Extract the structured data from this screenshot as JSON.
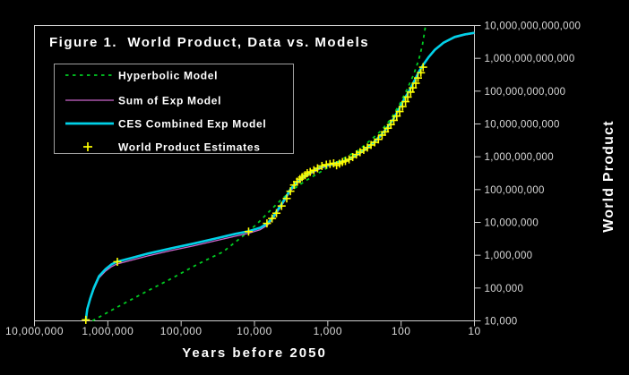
{
  "chart_data": {
    "type": "line",
    "title": "Figure 1.  World Product, Data vs. Models",
    "xlabel": "Years before 2050",
    "ylabel": "World Product",
    "background_color": "#000000",
    "frame_color": "#cfcfcf",
    "tick_label_color": "#d9d9d9",
    "x_axis": {
      "scale": "log10",
      "reversed": true,
      "min_exponent": 1,
      "max_exponent": 7,
      "tick_exponents": [
        7,
        6,
        5,
        4,
        3,
        2,
        1
      ],
      "tick_labels": [
        "10,000,000",
        "1,000,000",
        "100,000",
        "10,000",
        "1,000",
        "100",
        "10"
      ]
    },
    "y_axis": {
      "scale": "log10",
      "side": "right",
      "min_exponent": 4,
      "max_exponent": 13,
      "tick_exponents": [
        4,
        5,
        6,
        7,
        8,
        9,
        10,
        11,
        12,
        13
      ],
      "tick_labels": [
        "10,000",
        "100,000",
        "1,000,000",
        "10,000,000",
        "100,000,000",
        "1,000,000,000",
        "10,000,000,000",
        "100,000,000,000",
        "1,000,000,000,000",
        "10,000,000,000,000"
      ]
    },
    "legend": [
      {
        "label": "Hyperbolic Model",
        "sample": "dashed-line",
        "color": "#00cc22"
      },
      {
        "label": "Sum of Exp Model",
        "sample": "thin-line",
        "color": "#cc66cc"
      },
      {
        "label": "CES Combined Exp Model",
        "sample": "thick-line",
        "color": "#00d2e8"
      },
      {
        "label": "World Product Estimates",
        "sample": "plus-marker",
        "color": "#ffff00"
      }
    ],
    "series": [
      {
        "name": "Hyperbolic Model",
        "style": "dashed",
        "color": "#00cc22",
        "width": 1.8,
        "points_log10": [
          [
            6.21,
            4.0
          ],
          [
            5.88,
            4.41
          ],
          [
            5.51,
            4.85
          ],
          [
            5.14,
            5.28
          ],
          [
            4.78,
            5.72
          ],
          [
            4.43,
            6.1
          ],
          [
            4.17,
            6.56
          ],
          [
            3.98,
            6.92
          ],
          [
            3.8,
            7.33
          ],
          [
            3.65,
            7.66
          ],
          [
            3.49,
            7.98
          ],
          [
            3.31,
            8.26
          ],
          [
            3.13,
            8.5
          ],
          [
            2.94,
            8.75
          ],
          [
            2.76,
            8.98
          ],
          [
            2.58,
            9.2
          ],
          [
            2.42,
            9.5
          ],
          [
            2.27,
            9.8
          ],
          [
            2.14,
            10.15
          ],
          [
            2.02,
            10.6
          ],
          [
            1.92,
            11.05
          ],
          [
            1.83,
            11.5
          ],
          [
            1.76,
            11.95
          ],
          [
            1.71,
            12.4
          ],
          [
            1.67,
            12.95
          ]
        ]
      },
      {
        "name": "Sum of Exp Model",
        "style": "solid",
        "color": "#cc66cc",
        "width": 1.3,
        "points_log10": [
          [
            6.3,
            4.03
          ],
          [
            6.28,
            4.33
          ],
          [
            6.24,
            4.64
          ],
          [
            6.19,
            4.96
          ],
          [
            6.12,
            5.31
          ],
          [
            6.03,
            5.52
          ],
          [
            5.95,
            5.65
          ],
          [
            5.88,
            5.73
          ],
          [
            5.69,
            5.84
          ],
          [
            5.45,
            5.98
          ],
          [
            5.14,
            6.14
          ],
          [
            4.84,
            6.28
          ],
          [
            4.53,
            6.44
          ],
          [
            4.26,
            6.58
          ],
          [
            4.08,
            6.67
          ],
          [
            3.92,
            6.78
          ],
          [
            3.82,
            6.92
          ],
          [
            3.74,
            7.14
          ],
          [
            3.65,
            7.44
          ],
          [
            3.58,
            7.69
          ],
          [
            3.51,
            7.96
          ],
          [
            3.43,
            8.15
          ],
          [
            3.33,
            8.35
          ],
          [
            3.21,
            8.51
          ],
          [
            3.09,
            8.65
          ],
          [
            2.97,
            8.74
          ],
          [
            2.85,
            8.8
          ],
          [
            2.72,
            8.88
          ],
          [
            2.6,
            9.04
          ],
          [
            2.48,
            9.21
          ],
          [
            2.38,
            9.4
          ],
          [
            2.28,
            9.62
          ],
          [
            2.2,
            9.84
          ],
          [
            2.11,
            10.12
          ],
          [
            2.04,
            10.39
          ],
          [
            1.97,
            10.69
          ],
          [
            1.89,
            10.99
          ],
          [
            1.82,
            11.29
          ],
          [
            1.76,
            11.56
          ],
          [
            1.7,
            11.78
          ],
          [
            1.62,
            12.03
          ],
          [
            1.54,
            12.24
          ],
          [
            1.42,
            12.46
          ],
          [
            1.27,
            12.63
          ],
          [
            1.13,
            12.71
          ],
          [
            1.0,
            12.76
          ]
        ]
      },
      {
        "name": "CES Combined Exp Model",
        "style": "solid",
        "color": "#00d2e8",
        "width": 2.6,
        "points_log10": [
          [
            6.3,
            4.03
          ],
          [
            6.28,
            4.36
          ],
          [
            6.24,
            4.68
          ],
          [
            6.19,
            5.01
          ],
          [
            6.12,
            5.36
          ],
          [
            6.03,
            5.58
          ],
          [
            5.95,
            5.72
          ],
          [
            5.88,
            5.8
          ],
          [
            5.69,
            5.91
          ],
          [
            5.45,
            6.05
          ],
          [
            5.14,
            6.21
          ],
          [
            4.84,
            6.35
          ],
          [
            4.53,
            6.51
          ],
          [
            4.26,
            6.65
          ],
          [
            4.08,
            6.73
          ],
          [
            3.92,
            6.84
          ],
          [
            3.82,
            6.97
          ],
          [
            3.74,
            7.19
          ],
          [
            3.65,
            7.49
          ],
          [
            3.58,
            7.74
          ],
          [
            3.51,
            8.01
          ],
          [
            3.43,
            8.2
          ],
          [
            3.33,
            8.39
          ],
          [
            3.21,
            8.55
          ],
          [
            3.09,
            8.69
          ],
          [
            2.97,
            8.77
          ],
          [
            2.85,
            8.83
          ],
          [
            2.72,
            8.91
          ],
          [
            2.6,
            9.07
          ],
          [
            2.48,
            9.24
          ],
          [
            2.38,
            9.43
          ],
          [
            2.28,
            9.65
          ],
          [
            2.2,
            9.86
          ],
          [
            2.11,
            10.14
          ],
          [
            2.04,
            10.41
          ],
          [
            1.97,
            10.71
          ],
          [
            1.89,
            11.01
          ],
          [
            1.82,
            11.31
          ],
          [
            1.76,
            11.58
          ],
          [
            1.7,
            11.8
          ],
          [
            1.62,
            12.05
          ],
          [
            1.54,
            12.26
          ],
          [
            1.42,
            12.48
          ],
          [
            1.27,
            12.65
          ],
          [
            1.13,
            12.73
          ],
          [
            1.0,
            12.78
          ]
        ]
      },
      {
        "name": "World Product Estimates",
        "style": "markers",
        "marker": "plus",
        "color": "#ffff00",
        "width": 1.6,
        "points_log10": [
          [
            6.3,
            4.03
          ],
          [
            5.87,
            5.8
          ],
          [
            4.08,
            6.72
          ],
          [
            3.83,
            6.97
          ],
          [
            3.76,
            7.12
          ],
          [
            3.7,
            7.28
          ],
          [
            3.63,
            7.5
          ],
          [
            3.56,
            7.73
          ],
          [
            3.51,
            7.95
          ],
          [
            3.46,
            8.14
          ],
          [
            3.42,
            8.24
          ],
          [
            3.38,
            8.32
          ],
          [
            3.35,
            8.38
          ],
          [
            3.31,
            8.44
          ],
          [
            3.28,
            8.5
          ],
          [
            3.24,
            8.54
          ],
          [
            3.19,
            8.59
          ],
          [
            3.14,
            8.65
          ],
          [
            3.08,
            8.72
          ],
          [
            3.02,
            8.76
          ],
          [
            2.97,
            8.78
          ],
          [
            2.92,
            8.8
          ],
          [
            2.88,
            8.74
          ],
          [
            2.84,
            8.79
          ],
          [
            2.8,
            8.84
          ],
          [
            2.76,
            8.87
          ],
          [
            2.71,
            8.92
          ],
          [
            2.66,
            8.99
          ],
          [
            2.61,
            9.07
          ],
          [
            2.56,
            9.14
          ],
          [
            2.51,
            9.21
          ],
          [
            2.46,
            9.28
          ],
          [
            2.41,
            9.36
          ],
          [
            2.36,
            9.44
          ],
          [
            2.31,
            9.53
          ],
          [
            2.26,
            9.66
          ],
          [
            2.22,
            9.76
          ],
          [
            2.18,
            9.87
          ],
          [
            2.14,
            9.98
          ],
          [
            2.1,
            10.11
          ],
          [
            2.06,
            10.24
          ],
          [
            2.02,
            10.38
          ],
          [
            1.98,
            10.53
          ],
          [
            1.94,
            10.68
          ],
          [
            1.91,
            10.82
          ],
          [
            1.87,
            10.97
          ],
          [
            1.84,
            11.1
          ],
          [
            1.8,
            11.24
          ],
          [
            1.77,
            11.4
          ],
          [
            1.73,
            11.56
          ],
          [
            1.7,
            11.73
          ]
        ]
      }
    ]
  }
}
